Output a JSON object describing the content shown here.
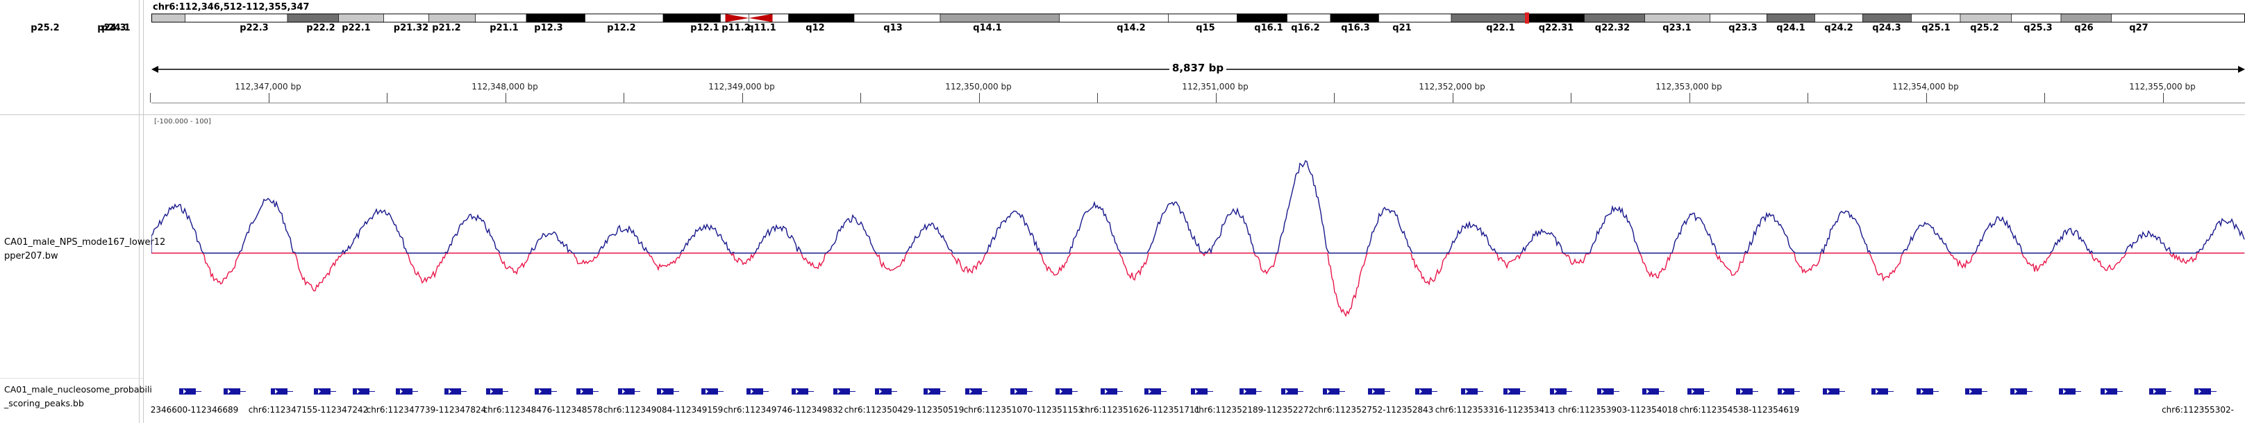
{
  "locus": "chr6:112,346,512-112,355,347",
  "ideogram": {
    "bands": [
      {
        "name": "p25.2",
        "stain": "white"
      },
      {
        "name": "p24.3",
        "stain": "gray"
      },
      {
        "name": "p24.1",
        "stain": "light"
      },
      {
        "name": "p22.3",
        "stain": "white"
      },
      {
        "name": "p22.2",
        "stain": "dark"
      },
      {
        "name": "p22.1",
        "stain": "light"
      },
      {
        "name": "p21.32",
        "stain": "white"
      },
      {
        "name": "p21.2",
        "stain": "light"
      },
      {
        "name": "p21.1",
        "stain": "white"
      },
      {
        "name": "p12.3",
        "stain": "black"
      },
      {
        "name": "p12.2",
        "stain": "white"
      },
      {
        "name": "p12.1",
        "stain": "black"
      },
      {
        "name": "p11.2",
        "stain": "white"
      },
      {
        "name": "q11.1",
        "stain": "centromere"
      },
      {
        "name": "q12",
        "stain": "black"
      },
      {
        "name": "q13",
        "stain": "white"
      },
      {
        "name": "q14.1",
        "stain": "gray"
      },
      {
        "name": "q14.2",
        "stain": "white"
      },
      {
        "name": "q15",
        "stain": "white"
      },
      {
        "name": "q16.1",
        "stain": "black"
      },
      {
        "name": "q16.2",
        "stain": "white"
      },
      {
        "name": "q16.3",
        "stain": "black"
      },
      {
        "name": "q21",
        "stain": "white"
      },
      {
        "name": "q22.1",
        "stain": "dark"
      },
      {
        "name": "q22.31",
        "stain": "black"
      },
      {
        "name": "q22.32",
        "stain": "dark"
      },
      {
        "name": "q23.1",
        "stain": "light"
      },
      {
        "name": "q23.3",
        "stain": "white"
      },
      {
        "name": "q24.1",
        "stain": "dark"
      },
      {
        "name": "q24.2",
        "stain": "white"
      },
      {
        "name": "q24.3",
        "stain": "dark"
      },
      {
        "name": "q25.1",
        "stain": "white"
      },
      {
        "name": "q25.2",
        "stain": "light"
      },
      {
        "name": "q25.3",
        "stain": "white"
      },
      {
        "name": "q26",
        "stain": "gray"
      },
      {
        "name": "q27",
        "stain": "white"
      }
    ],
    "current_region_marker_color": "#e02020"
  },
  "ruler": {
    "span_label": "8,837 bp",
    "ticks": [
      "112,347,000 bp",
      "112,348,000 bp",
      "112,349,000 bp",
      "112,350,000 bp",
      "112,351,000 bp",
      "112,352,000 bp",
      "112,353,000 bp",
      "112,354,000 bp",
      "112,355,000 bp"
    ]
  },
  "signal_track": {
    "name": "CA01_male_NPS_mode167_lower12\npper207.bw",
    "data_range": "[-100.000 - 100]",
    "positive_color": "#1a1a8c",
    "negative_color": "#e8174a",
    "midline_color": "#b0b0b0"
  },
  "peaks_track": {
    "name": "CA01_male_nucleosome_probabili\n_scoring_peaks.bb",
    "feature_color": "#1414a0",
    "peaks": [
      "2346600-112346689",
      "chr6:112347155-112347242",
      "chr6:112347739-112347824",
      "chr6:112348476-112348578",
      "chr6:112349084-112349159",
      "chr6:112349746-112349832",
      "chr6:112350429-112350519",
      "chr6:112351070-112351153",
      "chr6:112351626-112351711",
      "chr6:112352189-112352272",
      "chr6:112352752-112352843",
      "chr6:112353316-112353413",
      "chr6:112353903-112354018",
      "chr6:112354538-112354619",
      "chr6:112355302-"
    ]
  }
}
